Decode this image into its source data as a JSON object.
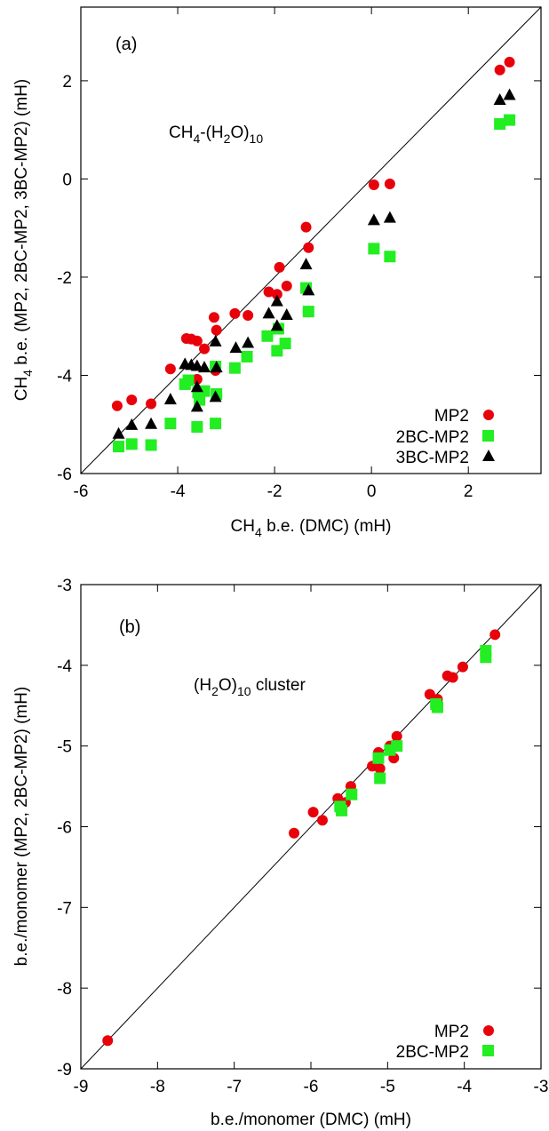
{
  "chart_data": [
    {
      "type": "scatter",
      "panel_label": "(a)",
      "annotation": {
        "base": "CH",
        "sub1": "4",
        "mid": "-(H",
        "sub2": "2",
        "end": "O)",
        "sub3": "10"
      },
      "xlabel": {
        "pre": "CH",
        "sub": "4",
        "post": " b.e. (DMC) (mH)"
      },
      "ylabel": {
        "pre": "CH",
        "sub": "4",
        "post": " b.e. (MP2, 2BC-MP2, 3BC-MP2) (mH)"
      },
      "xlim": [
        -6,
        3.5
      ],
      "ylim": [
        -6,
        3.5
      ],
      "xticks": [
        "-6",
        "-4",
        "-2",
        "0",
        "2"
      ],
      "yticks": [
        "-6",
        "-4",
        "-2",
        "0",
        "2"
      ],
      "diagonal": true,
      "legend_position": "bottom-right",
      "series": [
        {
          "name": "MP2",
          "marker": "circle",
          "color": "#e8000b",
          "points": [
            [
              -5.25,
              -4.62
            ],
            [
              -4.95,
              -4.5
            ],
            [
              -4.55,
              -4.58
            ],
            [
              -4.15,
              -3.87
            ],
            [
              -3.82,
              -3.25
            ],
            [
              -3.72,
              -3.26
            ],
            [
              -3.6,
              -3.3
            ],
            [
              -3.6,
              -4.08
            ],
            [
              -3.45,
              -3.46
            ],
            [
              -3.25,
              -2.82
            ],
            [
              -3.2,
              -3.08
            ],
            [
              -3.22,
              -3.9
            ],
            [
              -2.82,
              -2.74
            ],
            [
              -2.55,
              -2.78
            ],
            [
              -2.12,
              -2.3
            ],
            [
              -1.95,
              -2.35
            ],
            [
              -1.9,
              -1.8
            ],
            [
              -1.75,
              -2.18
            ],
            [
              -1.35,
              -0.98
            ],
            [
              -1.3,
              -1.4
            ],
            [
              0.05,
              -0.12
            ],
            [
              0.38,
              -0.1
            ],
            [
              2.65,
              2.22
            ],
            [
              2.85,
              2.38
            ]
          ]
        },
        {
          "name": "2BC-MP2",
          "marker": "square",
          "color": "#22ee22",
          "points": [
            [
              -5.22,
              -5.45
            ],
            [
              -4.95,
              -5.4
            ],
            [
              -4.55,
              -5.42
            ],
            [
              -4.15,
              -4.98
            ],
            [
              -3.85,
              -4.18
            ],
            [
              -3.78,
              -4.1
            ],
            [
              -3.6,
              -5.05
            ],
            [
              -3.58,
              -4.35
            ],
            [
              -3.55,
              -4.5
            ],
            [
              -3.45,
              -4.32
            ],
            [
              -3.22,
              -4.98
            ],
            [
              -3.2,
              -4.38
            ],
            [
              -3.22,
              -3.82
            ],
            [
              -2.82,
              -3.85
            ],
            [
              -2.57,
              -3.62
            ],
            [
              -2.15,
              -3.2
            ],
            [
              -1.95,
              -3.5
            ],
            [
              -1.92,
              -3.05
            ],
            [
              -1.78,
              -3.35
            ],
            [
              -1.35,
              -2.22
            ],
            [
              -1.3,
              -2.7
            ],
            [
              0.05,
              -1.42
            ],
            [
              0.38,
              -1.58
            ],
            [
              2.65,
              1.12
            ],
            [
              2.85,
              1.2
            ]
          ]
        },
        {
          "name": "3BC-MP2",
          "marker": "triangle",
          "color": "#000000",
          "points": [
            [
              -5.22,
              -5.2
            ],
            [
              -4.95,
              -5.02
            ],
            [
              -4.55,
              -5.0
            ],
            [
              -4.15,
              -4.5
            ],
            [
              -3.85,
              -3.78
            ],
            [
              -3.72,
              -3.8
            ],
            [
              -3.6,
              -3.82
            ],
            [
              -3.6,
              -4.25
            ],
            [
              -3.6,
              -4.65
            ],
            [
              -3.45,
              -3.85
            ],
            [
              -3.22,
              -3.32
            ],
            [
              -3.2,
              -3.85
            ],
            [
              -3.22,
              -4.45
            ],
            [
              -2.8,
              -3.45
            ],
            [
              -2.55,
              -3.35
            ],
            [
              -2.12,
              -2.75
            ],
            [
              -1.95,
              -2.5
            ],
            [
              -1.95,
              -3.0
            ],
            [
              -1.75,
              -2.78
            ],
            [
              -1.35,
              -1.75
            ],
            [
              -1.3,
              -2.28
            ],
            [
              0.05,
              -0.85
            ],
            [
              0.38,
              -0.8
            ],
            [
              2.65,
              1.6
            ],
            [
              2.85,
              1.7
            ]
          ]
        }
      ]
    },
    {
      "type": "scatter",
      "panel_label": "(b)",
      "annotation": {
        "base": "(H",
        "sub1": "2",
        "mid": "O)",
        "sub2": "10",
        "end": " cluster",
        "sub3": ""
      },
      "xlabel": {
        "pre": "b.e./monomer (DMC) (mH)",
        "sub": "",
        "post": ""
      },
      "ylabel": {
        "pre": "b.e./monomer (MP2, 2BC-MP2) (mH)",
        "sub": "",
        "post": ""
      },
      "xlim": [
        -9,
        -3
      ],
      "ylim": [
        -9,
        -3
      ],
      "xticks": [
        "-9",
        "-8",
        "-7",
        "-6",
        "-5",
        "-4",
        "-3"
      ],
      "yticks": [
        "-9",
        "-8",
        "-7",
        "-6",
        "-5",
        "-4",
        "-3"
      ],
      "diagonal": true,
      "legend_position": "bottom-right",
      "series": [
        {
          "name": "MP2",
          "marker": "circle",
          "color": "#e8000b",
          "points": [
            [
              -8.65,
              -8.65
            ],
            [
              -6.22,
              -6.08
            ],
            [
              -5.97,
              -5.82
            ],
            [
              -5.85,
              -5.92
            ],
            [
              -5.65,
              -5.65
            ],
            [
              -5.55,
              -5.7
            ],
            [
              -5.48,
              -5.5
            ],
            [
              -5.2,
              -5.25
            ],
            [
              -5.12,
              -5.08
            ],
            [
              -5.1,
              -5.28
            ],
            [
              -4.97,
              -5.0
            ],
            [
              -4.92,
              -5.15
            ],
            [
              -4.88,
              -4.88
            ],
            [
              -4.45,
              -4.36
            ],
            [
              -4.35,
              -4.42
            ],
            [
              -4.22,
              -4.13
            ],
            [
              -4.15,
              -4.15
            ],
            [
              -4.02,
              -4.02
            ],
            [
              -3.6,
              -3.62
            ]
          ]
        },
        {
          "name": "2BC-MP2",
          "marker": "square",
          "color": "#22ee22",
          "points": [
            [
              -5.62,
              -5.75
            ],
            [
              -5.6,
              -5.8
            ],
            [
              -5.47,
              -5.6
            ],
            [
              -5.12,
              -5.15
            ],
            [
              -5.1,
              -5.4
            ],
            [
              -4.97,
              -5.05
            ],
            [
              -4.88,
              -5.0
            ],
            [
              -4.37,
              -4.48
            ],
            [
              -4.35,
              -4.52
            ],
            [
              -3.72,
              -3.9
            ],
            [
              -3.72,
              -3.82
            ]
          ]
        }
      ]
    }
  ]
}
